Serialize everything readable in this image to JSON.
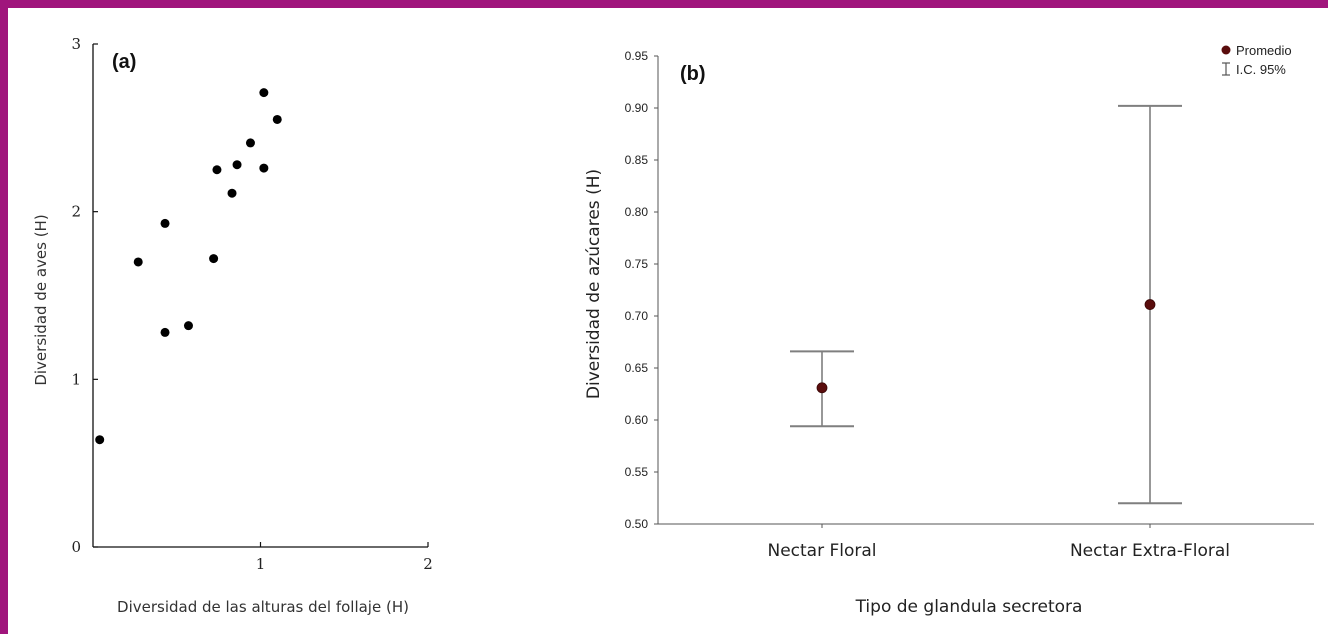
{
  "colors": {
    "border": "#a0157c",
    "marker_a": "#000000",
    "marker_b": "#5a0d0d",
    "errorbar": "#7f7f7f"
  },
  "chart_data": [
    {
      "panel": "(a)",
      "type": "scatter",
      "title": "",
      "xlabel": "Diversidad de las alturas del follaje (H)",
      "ylabel": "Diversidad de aves (H)",
      "xlim": [
        0,
        2
      ],
      "ylim": [
        0,
        3
      ],
      "xticks": [
        "1",
        "2"
      ],
      "yticks": [
        "0",
        "1",
        "2",
        "3"
      ],
      "grid": false,
      "points": [
        {
          "x": 0.04,
          "y": 0.64
        },
        {
          "x": 0.27,
          "y": 1.7
        },
        {
          "x": 0.43,
          "y": 1.28
        },
        {
          "x": 0.43,
          "y": 1.93
        },
        {
          "x": 0.57,
          "y": 1.32
        },
        {
          "x": 0.72,
          "y": 1.72
        },
        {
          "x": 0.74,
          "y": 2.25
        },
        {
          "x": 0.83,
          "y": 2.11
        },
        {
          "x": 0.86,
          "y": 2.28
        },
        {
          "x": 0.94,
          "y": 2.41
        },
        {
          "x": 1.02,
          "y": 2.26
        },
        {
          "x": 1.02,
          "y": 2.71
        },
        {
          "x": 1.1,
          "y": 2.55
        }
      ]
    },
    {
      "panel": "(b)",
      "type": "scatter",
      "title": "",
      "xlabel": "Tipo de glandula secretora",
      "ylabel": "Diversidad de azúcares (H)",
      "ylim": [
        0.5,
        0.95
      ],
      "yticks": [
        "0.50",
        "0.55",
        "0.60",
        "0.65",
        "0.70",
        "0.75",
        "0.80",
        "0.85",
        "0.90",
        "0.95"
      ],
      "categories": [
        "Nectar Floral",
        "Nectar Extra-Floral"
      ],
      "mean": [
        0.631,
        0.711
      ],
      "ci_low": [
        0.594,
        0.52
      ],
      "ci_high": [
        0.666,
        0.902
      ],
      "legend": {
        "position": "top-right",
        "entries": [
          "Promedio",
          "I.C. 95%"
        ]
      },
      "grid": false
    }
  ]
}
